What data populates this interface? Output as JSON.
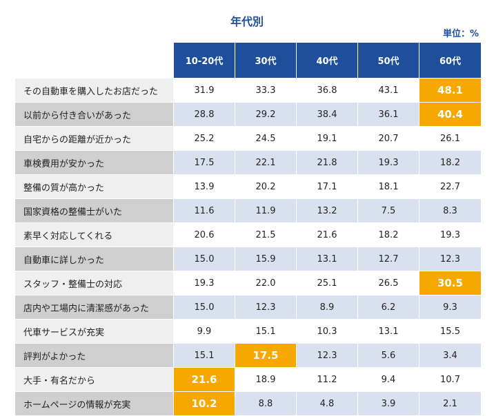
{
  "title": "年代別",
  "unit": "単位：%",
  "columns": [
    "10-20代",
    "30代",
    "40代",
    "50代",
    "60代"
  ],
  "highlight_color": "#f6a800",
  "header_color": "#1f4e9a",
  "rows": [
    {
      "label": "その自動車を購入したお店だった",
      "values": [
        "31.9",
        "33.3",
        "36.8",
        "43.1",
        "48.1"
      ],
      "highlight": [
        4
      ]
    },
    {
      "label": "以前から付き合いがあった",
      "values": [
        "28.8",
        "29.2",
        "38.4",
        "36.1",
        "40.4"
      ],
      "highlight": [
        4
      ]
    },
    {
      "label": "自宅からの距離が近かった",
      "values": [
        "25.2",
        "24.5",
        "19.1",
        "20.7",
        "26.1"
      ],
      "highlight": []
    },
    {
      "label": "車検費用が安かった",
      "values": [
        "17.5",
        "22.1",
        "21.8",
        "19.3",
        "18.2"
      ],
      "highlight": []
    },
    {
      "label": "整備の質が高かった",
      "values": [
        "13.9",
        "20.2",
        "17.1",
        "18.1",
        "22.7"
      ],
      "highlight": []
    },
    {
      "label": "国家資格の整備士がいた",
      "values": [
        "11.6",
        "11.9",
        "13.2",
        "7.5",
        "8.3"
      ],
      "highlight": []
    },
    {
      "label": "素早く対応してくれる",
      "values": [
        "20.6",
        "21.5",
        "21.6",
        "18.2",
        "19.3"
      ],
      "highlight": []
    },
    {
      "label": "自動車に詳しかった",
      "values": [
        "15.0",
        "15.9",
        "13.1",
        "12.7",
        "12.3"
      ],
      "highlight": []
    },
    {
      "label": "スタッフ・整備士の対応",
      "values": [
        "19.3",
        "22.0",
        "25.1",
        "26.5",
        "30.5"
      ],
      "highlight": [
        4
      ]
    },
    {
      "label": "店内や工場内に清潔感があった",
      "values": [
        "15.0",
        "12.3",
        "8.9",
        "6.2",
        "9.3"
      ],
      "highlight": []
    },
    {
      "label": "代車サービスが充実",
      "values": [
        "9.9",
        "15.1",
        "10.3",
        "13.1",
        "15.5"
      ],
      "highlight": []
    },
    {
      "label": "評判がよかった",
      "values": [
        "15.1",
        "17.5",
        "12.3",
        "5.6",
        "3.4"
      ],
      "highlight": [
        1
      ]
    },
    {
      "label": "大手・有名だから",
      "values": [
        "21.6",
        "18.9",
        "11.2",
        "9.4",
        "10.7"
      ],
      "highlight": [
        0
      ]
    },
    {
      "label": "ホームページの情報が充実",
      "values": [
        "10.2",
        "8.8",
        "4.8",
        "3.9",
        "2.1"
      ],
      "highlight": [
        0
      ]
    }
  ]
}
